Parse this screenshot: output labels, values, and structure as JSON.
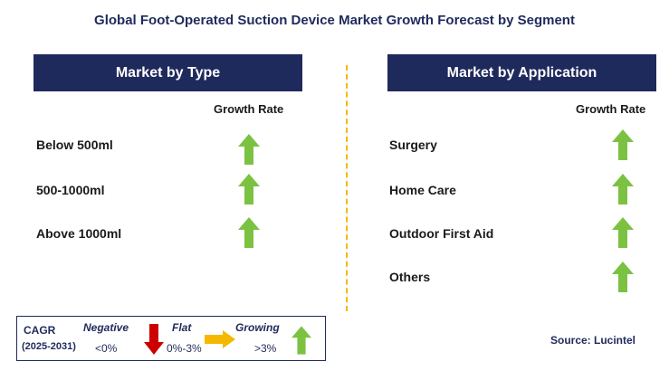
{
  "title": "Global Foot-Operated Suction Device Market Growth Forecast by Segment",
  "colors": {
    "header_bg": "#1f2a5c",
    "up_arrow": "#7cc242",
    "down_arrow": "#cc0000",
    "flat_arrow": "#f5b800",
    "divider": "#f5b800"
  },
  "chart_data": [
    {
      "type": "table",
      "title": "Market by Type",
      "column_header": "Growth Rate",
      "rows": [
        {
          "label": "Below 500ml",
          "growth": "growing"
        },
        {
          "label": "500-1000ml",
          "growth": "growing"
        },
        {
          "label": "Above 1000ml",
          "growth": "growing"
        }
      ]
    },
    {
      "type": "table",
      "title": "Market by Application",
      "column_header": "Growth Rate",
      "rows": [
        {
          "label": "Surgery",
          "growth": "growing"
        },
        {
          "label": "Home Care",
          "growth": "growing"
        },
        {
          "label": "Outdoor First Aid",
          "growth": "growing"
        },
        {
          "label": "Others",
          "growth": "growing"
        }
      ]
    }
  ],
  "legend": {
    "cagr_label": "CAGR",
    "period": "(2025-2031)",
    "negative_label": "Negative",
    "negative_value": "<0%",
    "flat_label": "Flat",
    "flat_value": "0%-3%",
    "growing_label": "Growing",
    "growing_value": ">3%",
    "icons": [
      "down-arrow-icon",
      "right-arrow-icon",
      "up-arrow-icon"
    ]
  },
  "source": "Source: Lucintel"
}
